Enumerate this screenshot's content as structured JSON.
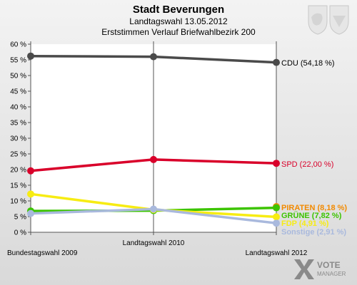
{
  "header": {
    "title": "Stadt Beverungen",
    "subtitle1": "Landtagswahl 13.05.2012",
    "subtitle2": "Erststimmen Verlauf Briefwahlbezirk 200"
  },
  "logo": {
    "line1": "VOTE",
    "line2": "MANAGER"
  },
  "crest_icon": "coat-of-arms-icon",
  "chart_data": {
    "type": "line",
    "categories": [
      "Bundestagswahl 2009",
      "Landtagswahl 2010",
      "Landtagswahl 2012"
    ],
    "ylim": [
      0,
      60
    ],
    "yticks": [
      0,
      5,
      10,
      15,
      20,
      25,
      30,
      35,
      40,
      45,
      50,
      55,
      60
    ],
    "ytick_labels": [
      "0 %",
      "5 %",
      "10 %",
      "15 %",
      "20 %",
      "25 %",
      "30 %",
      "35 %",
      "40 %",
      "45 %",
      "50 %",
      "55 %",
      "60 %"
    ],
    "grid": false,
    "series": [
      {
        "name": "CDU",
        "label": "CDU (54,18 %)",
        "color": "#4a4a4a",
        "values": [
          56.2,
          56.0,
          54.18
        ]
      },
      {
        "name": "SPD",
        "label": "SPD (22,00 %)",
        "color": "#d9002a",
        "values": [
          19.6,
          23.2,
          22.0
        ]
      },
      {
        "name": "PIRATEN",
        "label": "PIRATEN (8,18 %)",
        "color": "#f28a00",
        "values": [
          null,
          null,
          8.18
        ]
      },
      {
        "name": "GRÜNE",
        "label": "GRÜNE (7,82 %)",
        "color": "#3cc400",
        "values": [
          6.8,
          6.9,
          7.82
        ]
      },
      {
        "name": "FDP",
        "label": "FDP (4,91 %)",
        "color": "#f7ec13",
        "values": [
          12.2,
          7.2,
          4.91
        ]
      },
      {
        "name": "Sonstige",
        "label": "Sonstige (2,91 %)",
        "color": "#a9b9dd",
        "values": [
          6.0,
          7.4,
          2.91
        ]
      }
    ]
  }
}
